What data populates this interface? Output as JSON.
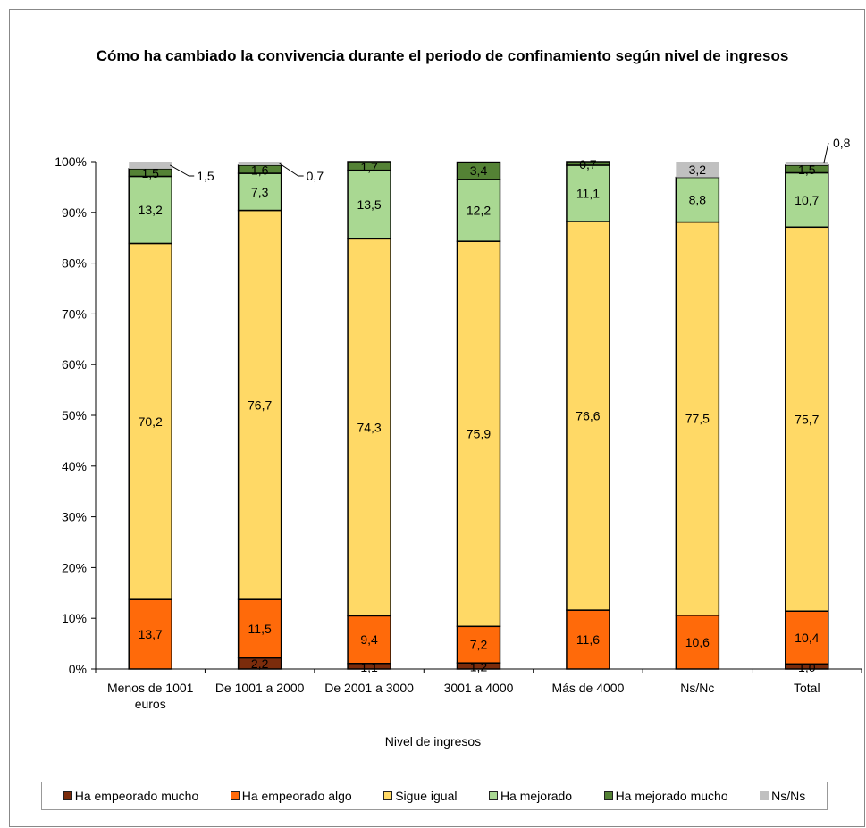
{
  "chart_data": {
    "type": "bar",
    "stacked": true,
    "title": "Cómo ha cambiado la convivencia durante el periodo de confinamiento según nivel de ingresos",
    "xlabel": "Nivel de ingresos",
    "ylabel": "",
    "ylim": [
      0,
      100
    ],
    "yticks": [
      "0%",
      "10%",
      "20%",
      "30%",
      "40%",
      "50%",
      "60%",
      "70%",
      "80%",
      "90%",
      "100%"
    ],
    "categories": [
      "Menos de 1001 euros",
      "De 1001 a 2000",
      "De 2001 a 3000",
      "3001 a 4000",
      "Más de 4000",
      "Ns/Nc",
      "Total"
    ],
    "series": [
      {
        "name": "Ha empeorado mucho",
        "color": "#7b2c0c",
        "values": [
          0,
          2.2,
          1.1,
          1.2,
          0,
          0,
          1.0
        ],
        "labels": [
          "",
          "2,2",
          "1,1",
          "1,2",
          "",
          "",
          "1,0"
        ]
      },
      {
        "name": "Ha empeorado algo",
        "color": "#ff6a0a",
        "values": [
          13.7,
          11.5,
          9.4,
          7.2,
          11.6,
          10.6,
          10.4
        ],
        "labels": [
          "13,7",
          "11,5",
          "9,4",
          "7,2",
          "11,6",
          "10,6",
          "10,4"
        ]
      },
      {
        "name": "Sigue igual",
        "color": "#ffd966",
        "values": [
          70.2,
          76.7,
          74.3,
          75.9,
          76.6,
          77.5,
          75.7
        ],
        "labels": [
          "70,2",
          "76,7",
          "74,3",
          "75,9",
          "76,6",
          "77,5",
          "75,7"
        ]
      },
      {
        "name": "Ha mejorado",
        "color": "#a9d892",
        "values": [
          13.2,
          7.3,
          13.5,
          12.2,
          11.1,
          8.8,
          10.7
        ],
        "labels": [
          "13,2",
          "7,3",
          "13,5",
          "12,2",
          "11,1",
          "8,8",
          "10,7"
        ]
      },
      {
        "name": "Ha mejorado mucho",
        "color": "#548235",
        "values": [
          1.5,
          1.6,
          1.7,
          3.4,
          0.7,
          0,
          1.5
        ],
        "labels": [
          "1,5",
          "1,6",
          "1,7",
          "3,4",
          "0,7",
          "",
          "1,5"
        ]
      },
      {
        "name": "Ns/Ns",
        "color": "#c0c0c0",
        "values": [
          1.5,
          0.7,
          0,
          0,
          0,
          3.2,
          0.8
        ],
        "labels": [
          "1,5",
          "0,7",
          "",
          "",
          "",
          "3,2",
          "0,8"
        ]
      }
    ],
    "legend_position": "bottom",
    "grid": false
  }
}
